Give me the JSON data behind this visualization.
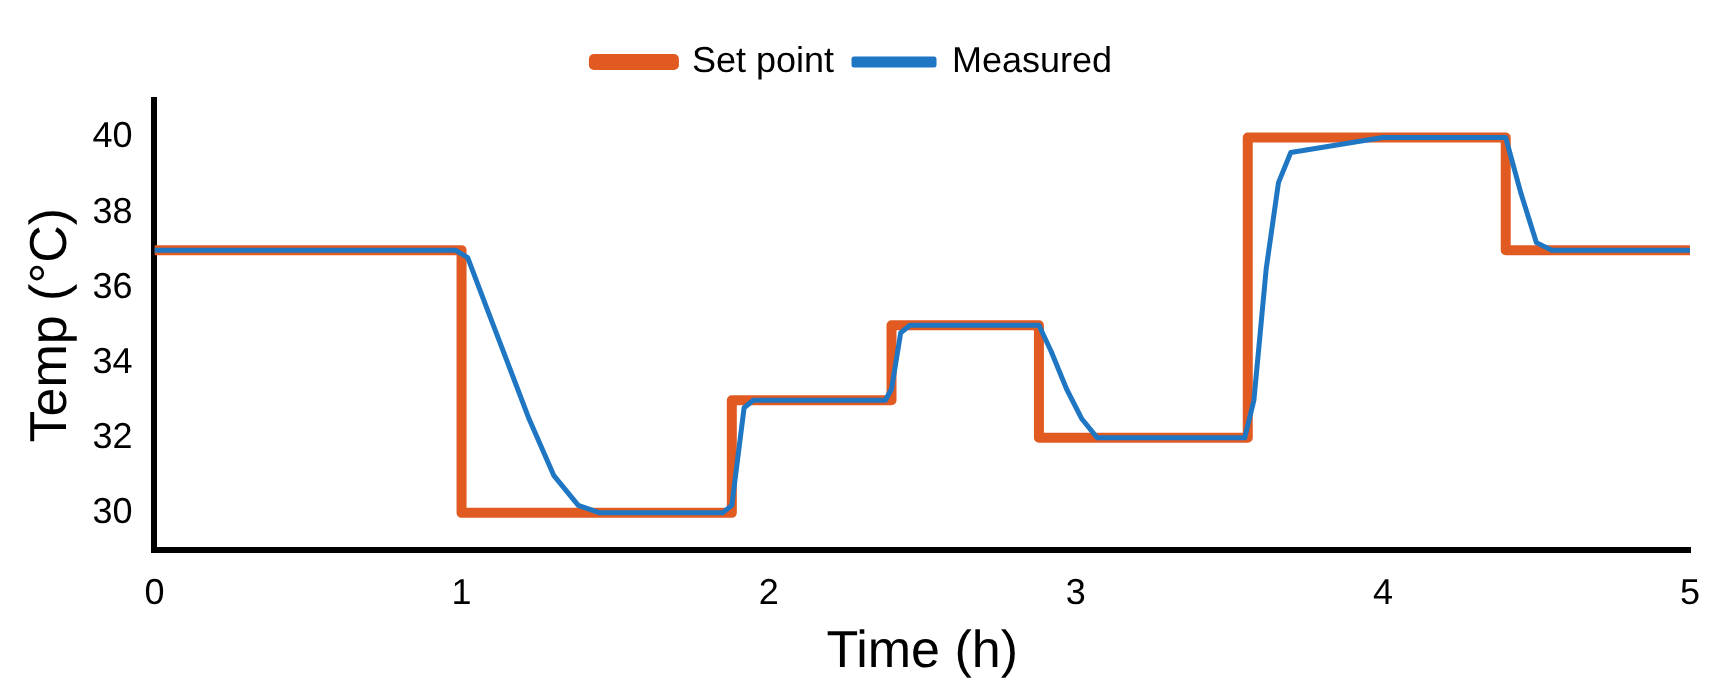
{
  "chart_data": {
    "type": "line",
    "xlabel": "Time (h)",
    "ylabel": "Temp (°C)",
    "xlim": [
      0,
      5
    ],
    "xticks": [
      0,
      1,
      2,
      3,
      4,
      5
    ],
    "ylim": [
      29,
      41
    ],
    "yticks": [
      30,
      32,
      34,
      36,
      38,
      40
    ],
    "grid": false,
    "legend": "top",
    "series": [
      {
        "name": "Set point",
        "type": "step",
        "color": "#e15a22",
        "x": [
          0,
          1,
          1.88,
          2.4,
          2.88,
          3.56,
          4.4,
          5
        ],
        "values": [
          37,
          30,
          33,
          35,
          32,
          40,
          37,
          37
        ]
      },
      {
        "name": "Measured",
        "type": "line",
        "color": "#1f77c4",
        "x": [
          0,
          0.2,
          0.5,
          0.8,
          0.98,
          1.02,
          1.08,
          1.15,
          1.22,
          1.3,
          1.38,
          1.45,
          1.6,
          1.85,
          1.88,
          1.92,
          1.95,
          2.2,
          2.38,
          2.4,
          2.43,
          2.46,
          2.7,
          2.88,
          2.92,
          2.97,
          3.02,
          3.07,
          3.3,
          3.55,
          3.58,
          3.62,
          3.66,
          3.7,
          3.85,
          4.0,
          4.2,
          4.4,
          4.45,
          4.5,
          4.55,
          4.8,
          5
        ],
        "values": [
          37,
          37,
          37,
          37,
          37,
          36.8,
          35.5,
          34,
          32.5,
          31,
          30.2,
          30,
          30,
          30,
          30.2,
          32.8,
          33,
          33,
          33,
          33.3,
          34.8,
          35,
          35,
          35,
          34.3,
          33.3,
          32.5,
          32,
          32,
          32,
          33,
          36.5,
          38.8,
          39.6,
          39.8,
          40,
          40,
          40,
          38.5,
          37.2,
          37,
          37,
          37
        ]
      }
    ]
  }
}
